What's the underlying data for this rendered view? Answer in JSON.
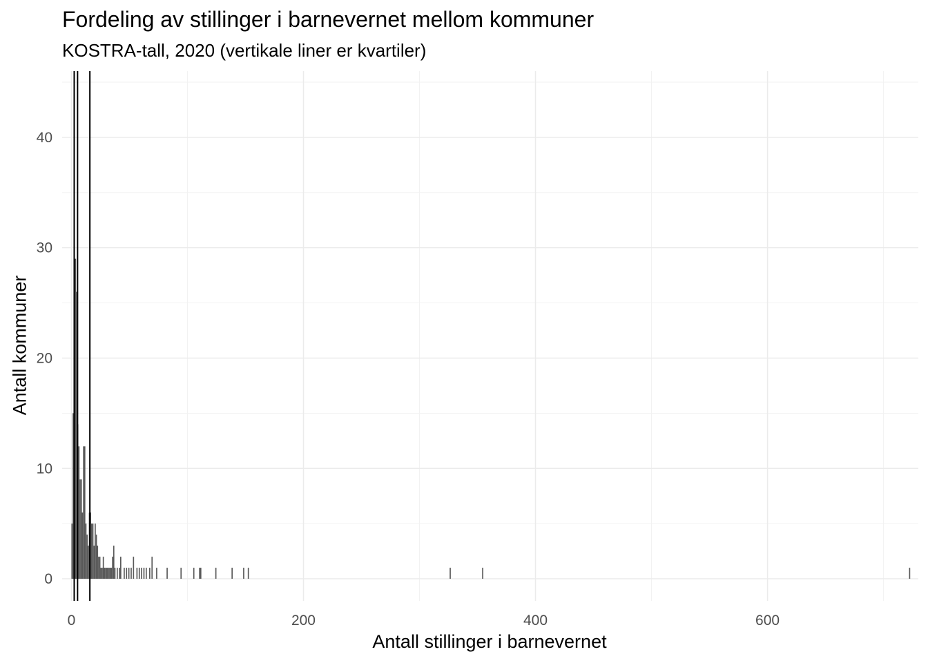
{
  "title": "Fordeling av stillinger i barnevernet mellom kommuner",
  "subtitle": "KOSTRA-tall, 2020 (vertikale liner er kvartiler)",
  "chart_data": {
    "type": "bar",
    "subtype": "histogram",
    "title": "Fordeling av stillinger i barnevernet mellom kommuner",
    "subtitle": "KOSTRA-tall, 2020 (vertikale liner er kvartiler)",
    "xlabel": "Antall stillinger i barnevernet",
    "ylabel": "Antall kommuner",
    "xlim": [
      -8,
      730
    ],
    "ylim": [
      -2,
      46
    ],
    "x_ticks": [
      0,
      200,
      400,
      600
    ],
    "y_ticks": [
      0,
      10,
      20,
      30,
      40
    ],
    "grid": true,
    "bar_color": "#595959",
    "bin_width": 1,
    "quartile_lines": [
      2.4,
      5.3,
      15.9
    ],
    "bins": [
      {
        "x": 0,
        "count": 5
      },
      {
        "x": 1,
        "count": 15
      },
      {
        "x": 2,
        "count": 44
      },
      {
        "x": 3,
        "count": 29
      },
      {
        "x": 4,
        "count": 26
      },
      {
        "x": 5,
        "count": 14
      },
      {
        "x": 6,
        "count": 12
      },
      {
        "x": 7,
        "count": 9
      },
      {
        "x": 8,
        "count": 9
      },
      {
        "x": 9,
        "count": 6
      },
      {
        "x": 10,
        "count": 12
      },
      {
        "x": 11,
        "count": 12
      },
      {
        "x": 12,
        "count": 5
      },
      {
        "x": 13,
        "count": 4
      },
      {
        "x": 14,
        "count": 3
      },
      {
        "x": 15,
        "count": 6
      },
      {
        "x": 16,
        "count": 6
      },
      {
        "x": 17,
        "count": 5
      },
      {
        "x": 18,
        "count": 5
      },
      {
        "x": 19,
        "count": 3
      },
      {
        "x": 20,
        "count": 5
      },
      {
        "x": 21,
        "count": 4
      },
      {
        "x": 22,
        "count": 3
      },
      {
        "x": 23,
        "count": 2
      },
      {
        "x": 24,
        "count": 2
      },
      {
        "x": 25,
        "count": 1
      },
      {
        "x": 26,
        "count": 1
      },
      {
        "x": 27,
        "count": 2
      },
      {
        "x": 28,
        "count": 1
      },
      {
        "x": 29,
        "count": 1
      },
      {
        "x": 30,
        "count": 1
      },
      {
        "x": 31,
        "count": 1
      },
      {
        "x": 32,
        "count": 1
      },
      {
        "x": 33,
        "count": 1
      },
      {
        "x": 34,
        "count": 1
      },
      {
        "x": 35,
        "count": 2
      },
      {
        "x": 36,
        "count": 3
      },
      {
        "x": 37,
        "count": 1
      },
      {
        "x": 39,
        "count": 1
      },
      {
        "x": 41,
        "count": 1
      },
      {
        "x": 42,
        "count": 2
      },
      {
        "x": 45,
        "count": 1
      },
      {
        "x": 47,
        "count": 1
      },
      {
        "x": 49,
        "count": 1
      },
      {
        "x": 51,
        "count": 1
      },
      {
        "x": 53,
        "count": 2
      },
      {
        "x": 56,
        "count": 1
      },
      {
        "x": 58,
        "count": 1
      },
      {
        "x": 60,
        "count": 1
      },
      {
        "x": 62,
        "count": 1
      },
      {
        "x": 64,
        "count": 1
      },
      {
        "x": 67,
        "count": 1
      },
      {
        "x": 69,
        "count": 2
      },
      {
        "x": 73,
        "count": 1
      },
      {
        "x": 82,
        "count": 1
      },
      {
        "x": 94,
        "count": 1
      },
      {
        "x": 105,
        "count": 1
      },
      {
        "x": 110,
        "count": 1
      },
      {
        "x": 111,
        "count": 1
      },
      {
        "x": 124,
        "count": 1
      },
      {
        "x": 138,
        "count": 1
      },
      {
        "x": 148,
        "count": 1
      },
      {
        "x": 152,
        "count": 1
      },
      {
        "x": 326,
        "count": 1
      },
      {
        "x": 354,
        "count": 1
      },
      {
        "x": 722,
        "count": 1
      }
    ]
  }
}
